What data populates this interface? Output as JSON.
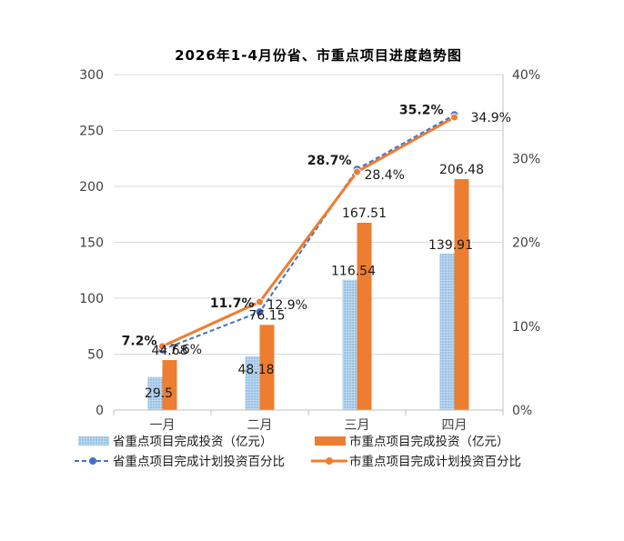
{
  "chart_data": {
    "type": "bar",
    "title": "2026年1-4月份省、市重点项目进度趋势图",
    "categories": [
      "一月",
      "二月",
      "三月",
      "四月"
    ],
    "y_left": {
      "min": 0,
      "max": 300,
      "ticks": [
        "0",
        "50",
        "100",
        "150",
        "200",
        "250",
        "300"
      ]
    },
    "y_right": {
      "min": 0,
      "max": 40,
      "ticks": [
        "0%",
        "10%",
        "20%",
        "30%",
        "40%"
      ]
    },
    "gridlines": true,
    "legend_position": "bottom",
    "series": [
      {
        "name": "省重点项目完成投资（亿元）",
        "kind": "bar",
        "axis": "left",
        "color": "#9dc3e6",
        "pattern": "dotted",
        "values": [
          29.5,
          48.18,
          116.54,
          139.91
        ],
        "labels": [
          "29.5",
          "48.18",
          "116.54",
          "139.91"
        ]
      },
      {
        "name": "市重点项目完成投资（亿元）",
        "kind": "bar",
        "axis": "left",
        "color": "#ed7d31",
        "values": [
          44.68,
          76.15,
          167.51,
          206.48
        ],
        "labels": [
          "44.68",
          "76.15",
          "167.51",
          "206.48"
        ]
      },
      {
        "name": "省重点项目完成计划投资百分比",
        "kind": "line",
        "axis": "right",
        "color": "#4472c4",
        "dash": true,
        "values": [
          7.2,
          11.7,
          28.7,
          35.2
        ],
        "labels": [
          "7.2%",
          "11.7%",
          "28.7%",
          "35.2%"
        ]
      },
      {
        "name": "市重点项目完成计划投资百分比",
        "kind": "line",
        "axis": "right",
        "color": "#ed7d31",
        "dash": false,
        "values": [
          7.6,
          12.9,
          28.4,
          34.9
        ],
        "labels": [
          "7.6%",
          "12.9%",
          "28.4%",
          "34.9%"
        ]
      }
    ]
  }
}
